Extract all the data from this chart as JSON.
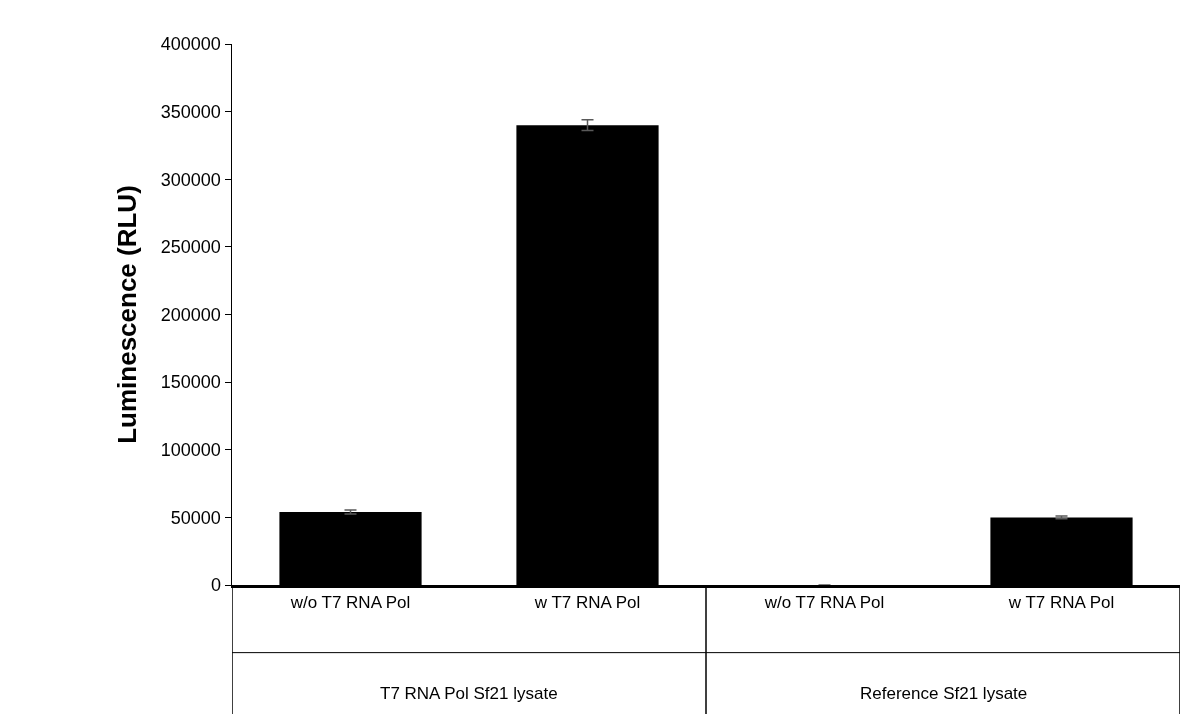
{
  "chart_data": {
    "type": "bar",
    "ylabel": "Luminescence (RLU)",
    "categories": [
      "w/o T7 RNA Pol",
      "w T7 RNA Pol",
      "w/o T7 RNA Pol",
      "w T7 RNA Pol"
    ],
    "values": [
      54000,
      340000,
      0,
      50000
    ],
    "errors": [
      1500,
      4000,
      null,
      1000
    ],
    "color": "#000000",
    "ylim": [
      0,
      400000
    ],
    "yticks": [
      0,
      50000,
      100000,
      150000,
      200000,
      250000,
      300000,
      350000,
      400000
    ],
    "grid": false,
    "annotations": [
      "T7 RNA Pol Sf21 lysate",
      "Reference Sf21 lysate"
    ]
  }
}
